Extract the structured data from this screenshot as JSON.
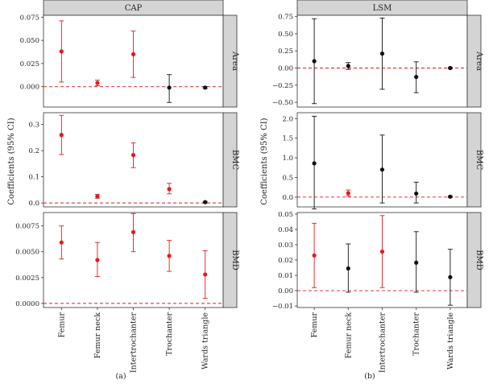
{
  "colors": {
    "significant": "#e8191c",
    "nonsignificant": "#111111",
    "refline": "#e8191c",
    "strip_bg": "#d4d4d4",
    "panel_border": "#333333"
  },
  "ylabel": "Coefficients (95% CI)",
  "chart_data": [
    {
      "type": "scatter",
      "subtitle": "(a)",
      "title": "CAP",
      "categories": [
        "Femur",
        "Femur neck",
        "Intertrochanter",
        "Trochanter",
        "Wards triangle"
      ],
      "facets": [
        {
          "label": "Area",
          "ylim": [
            -0.022,
            0.077
          ],
          "ticks": [
            0.0,
            0.025,
            0.05,
            0.075
          ],
          "tick_labels": [
            "0.000",
            "0.025",
            "0.050",
            "0.075"
          ],
          "points": [
            {
              "category": "Femur",
              "estimate": 0.038,
              "lower": 0.005,
              "upper": 0.071,
              "significant": true
            },
            {
              "category": "Femur neck",
              "estimate": 0.004,
              "lower": 0.001,
              "upper": 0.007,
              "significant": true
            },
            {
              "category": "Intertrochanter",
              "estimate": 0.035,
              "lower": 0.01,
              "upper": 0.06,
              "significant": true
            },
            {
              "category": "Trochanter",
              "estimate": -0.001,
              "lower": -0.017,
              "upper": 0.013,
              "significant": false
            },
            {
              "category": "Wards triangle",
              "estimate": -0.001,
              "lower": -0.002,
              "upper": 0.0,
              "significant": false
            }
          ]
        },
        {
          "label": "BMC",
          "ylim": [
            -0.015,
            0.345
          ],
          "ticks": [
            0.0,
            0.1,
            0.2,
            0.3
          ],
          "tick_labels": [
            "0.0",
            "0.1",
            "0.2",
            "0.3"
          ],
          "points": [
            {
              "category": "Femur",
              "estimate": 0.26,
              "lower": 0.185,
              "upper": 0.335,
              "significant": true
            },
            {
              "category": "Femur neck",
              "estimate": 0.025,
              "lower": 0.018,
              "upper": 0.033,
              "significant": true
            },
            {
              "category": "Intertrochanter",
              "estimate": 0.183,
              "lower": 0.135,
              "upper": 0.23,
              "significant": true
            },
            {
              "category": "Trochanter",
              "estimate": 0.053,
              "lower": 0.035,
              "upper": 0.075,
              "significant": true
            },
            {
              "category": "Wards triangle",
              "estimate": 0.003,
              "lower": 0.0,
              "upper": 0.006,
              "significant": false
            }
          ]
        },
        {
          "label": "BMD",
          "ylim": [
            -0.0004,
            0.0088
          ],
          "ticks": [
            0.0,
            0.0025,
            0.005,
            0.0075
          ],
          "tick_labels": [
            "0.0000",
            "0.0025",
            "0.0050",
            "0.0075"
          ],
          "points": [
            {
              "category": "Femur",
              "estimate": 0.0059,
              "lower": 0.0043,
              "upper": 0.0075,
              "significant": true
            },
            {
              "category": "Femur neck",
              "estimate": 0.0042,
              "lower": 0.0026,
              "upper": 0.0059,
              "significant": true
            },
            {
              "category": "Intertrochanter",
              "estimate": 0.0069,
              "lower": 0.005,
              "upper": 0.0087,
              "significant": true
            },
            {
              "category": "Trochanter",
              "estimate": 0.0046,
              "lower": 0.0031,
              "upper": 0.0061,
              "significant": true
            },
            {
              "category": "Wards triangle",
              "estimate": 0.0028,
              "lower": 0.0005,
              "upper": 0.0051,
              "significant": true
            }
          ]
        }
      ]
    },
    {
      "type": "scatter",
      "subtitle": "(b)",
      "title": "LSM",
      "categories": [
        "Femur",
        "Femur neck",
        "Intertrochanter",
        "Trochanter",
        "Wards triangle"
      ],
      "facets": [
        {
          "label": "Area",
          "ylim": [
            -0.57,
            0.77
          ],
          "ticks": [
            -0.5,
            -0.25,
            0.0,
            0.25,
            0.5,
            0.75
          ],
          "tick_labels": [
            "−0.50",
            "−0.25",
            "0.00",
            "0.25",
            "0.50",
            "0.75"
          ],
          "points": [
            {
              "category": "Femur",
              "estimate": 0.1,
              "lower": -0.52,
              "upper": 0.72,
              "significant": false
            },
            {
              "category": "Femur neck",
              "estimate": 0.03,
              "lower": -0.02,
              "upper": 0.08,
              "significant": false
            },
            {
              "category": "Intertrochanter",
              "estimate": 0.21,
              "lower": -0.31,
              "upper": 0.73,
              "significant": false
            },
            {
              "category": "Trochanter",
              "estimate": -0.13,
              "lower": -0.36,
              "upper": 0.09,
              "significant": false
            },
            {
              "category": "Wards triangle",
              "estimate": 0.0,
              "lower": -0.01,
              "upper": 0.01,
              "significant": false
            }
          ]
        },
        {
          "label": "BMC",
          "ylim": [
            -0.25,
            2.15
          ],
          "ticks": [
            0.0,
            0.5,
            1.0,
            1.5,
            2.0
          ],
          "tick_labels": [
            "0.0",
            "0.5",
            "1.0",
            "1.5",
            "2.0"
          ],
          "points": [
            {
              "category": "Femur",
              "estimate": 0.86,
              "lower": -0.3,
              "upper": 2.06,
              "significant": false
            },
            {
              "category": "Femur neck",
              "estimate": 0.1,
              "lower": 0.03,
              "upper": 0.18,
              "significant": true
            },
            {
              "category": "Intertrochanter",
              "estimate": 0.7,
              "lower": -0.15,
              "upper": 1.58,
              "significant": false
            },
            {
              "category": "Trochanter",
              "estimate": 0.09,
              "lower": -0.15,
              "upper": 0.38,
              "significant": false
            },
            {
              "category": "Wards triangle",
              "estimate": 0.01,
              "lower": -0.01,
              "upper": 0.03,
              "significant": false
            }
          ]
        },
        {
          "label": "BMD",
          "ylim": [
            -0.011,
            0.051
          ],
          "ticks": [
            -0.01,
            0.0,
            0.01,
            0.02,
            0.03,
            0.04,
            0.05
          ],
          "tick_labels": [
            "−0.01",
            "0.00",
            "0.01",
            "0.02",
            "0.03",
            "0.04",
            "0.05"
          ],
          "points": [
            {
              "category": "Femur",
              "estimate": 0.023,
              "lower": 0.002,
              "upper": 0.044,
              "significant": true
            },
            {
              "category": "Femur neck",
              "estimate": 0.0145,
              "lower": -0.001,
              "upper": 0.0305,
              "significant": false
            },
            {
              "category": "Intertrochanter",
              "estimate": 0.0255,
              "lower": 0.002,
              "upper": 0.049,
              "significant": true
            },
            {
              "category": "Trochanter",
              "estimate": 0.0183,
              "lower": -0.001,
              "upper": 0.0385,
              "significant": false
            },
            {
              "category": "Wards triangle",
              "estimate": 0.0088,
              "lower": -0.0095,
              "upper": 0.027,
              "significant": false
            }
          ]
        }
      ]
    }
  ]
}
